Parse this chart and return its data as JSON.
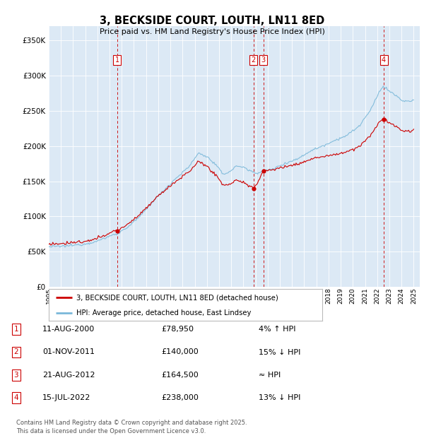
{
  "title": "3, BECKSIDE COURT, LOUTH, LN11 8ED",
  "subtitle": "Price paid vs. HM Land Registry's House Price Index (HPI)",
  "background_color": "#dce9f5",
  "ylim": [
    0,
    370000
  ],
  "yticks": [
    0,
    50000,
    100000,
    150000,
    200000,
    250000,
    300000,
    350000
  ],
  "xlim_start": 1995.0,
  "xlim_end": 2025.5,
  "sale_dates": [
    2000.61,
    2011.83,
    2012.64,
    2022.54
  ],
  "sale_prices": [
    78950,
    140000,
    164500,
    238000
  ],
  "sale_labels": [
    "1",
    "2",
    "3",
    "4"
  ],
  "red_line_color": "#cc0000",
  "blue_line_color": "#7ab8d9",
  "annotation_box_color": "#cc0000",
  "dashed_line_color": "#cc0000",
  "legend_entries": [
    "3, BECKSIDE COURT, LOUTH, LN11 8ED (detached house)",
    "HPI: Average price, detached house, East Lindsey"
  ],
  "table_entries": [
    {
      "num": "1",
      "date": "11-AUG-2000",
      "price": "£78,950",
      "note": "4% ↑ HPI"
    },
    {
      "num": "2",
      "date": "01-NOV-2011",
      "price": "£140,000",
      "note": "15% ↓ HPI"
    },
    {
      "num": "3",
      "date": "21-AUG-2012",
      "price": "£164,500",
      "note": "≈ HPI"
    },
    {
      "num": "4",
      "date": "15-JUL-2022",
      "price": "£238,000",
      "note": "13% ↓ HPI"
    }
  ],
  "footer": "Contains HM Land Registry data © Crown copyright and database right 2025.\nThis data is licensed under the Open Government Licence v3.0."
}
